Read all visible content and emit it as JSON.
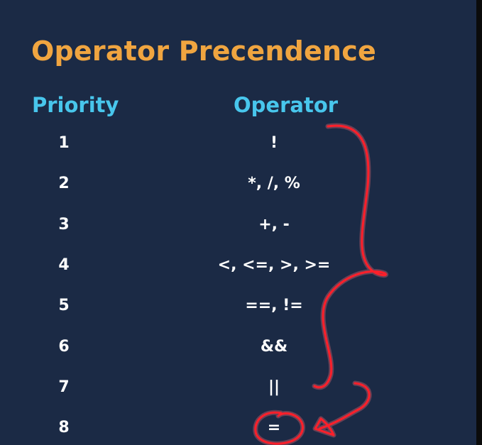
{
  "slide": {
    "title": "Operator Precendence",
    "headers": {
      "priority": "Priority",
      "operator": "Operator"
    },
    "rows": [
      {
        "priority": "1",
        "operator": "!"
      },
      {
        "priority": "2",
        "operator": "*, /, %"
      },
      {
        "priority": "3",
        "operator": "+, -"
      },
      {
        "priority": "4",
        "operator": "<, <=, >, >="
      },
      {
        "priority": "5",
        "operator": "==, !="
      },
      {
        "priority": "6",
        "operator": "&&"
      },
      {
        "priority": "7",
        "operator": "||"
      },
      {
        "priority": "8",
        "operator": "="
      }
    ]
  },
  "colors": {
    "background": "#1b2a45",
    "title": "#f0a540",
    "header": "#48c6ec",
    "text": "#ffffff",
    "annotation": "#ff1f2a"
  },
  "annotations": {
    "items": [
      "curly-brace",
      "circle",
      "arrow"
    ]
  }
}
